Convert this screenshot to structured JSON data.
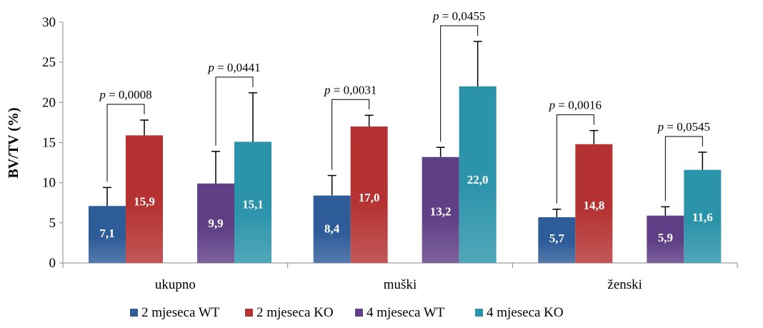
{
  "chart_data": {
    "type": "bar",
    "ylabel": "BV/TV (%)",
    "ylim": [
      0,
      30
    ],
    "yticks": [
      "0",
      "5",
      "10",
      "15",
      "20",
      "25",
      "30"
    ],
    "categories": [
      "ukupno",
      "muški",
      "ženski"
    ],
    "grid": false,
    "legend_position": "bottom",
    "series": [
      {
        "name": "2 mjeseca WT",
        "color": "#2E5C99",
        "values": [
          7.1,
          8.4,
          5.7
        ],
        "labels": [
          "7,1",
          "8,4",
          "5,7"
        ],
        "errors": [
          2.3,
          2.5,
          1.0
        ]
      },
      {
        "name": "2 mjeseca KO",
        "color": "#B53232",
        "values": [
          15.9,
          17.0,
          14.8
        ],
        "labels": [
          "15,9",
          "17,0",
          "14,8"
        ],
        "errors": [
          1.9,
          1.4,
          1.7
        ]
      },
      {
        "name": "4 mjeseca WT",
        "color": "#5F3F86",
        "values": [
          9.9,
          13.2,
          5.9
        ],
        "labels": [
          "9,9",
          "13,2",
          "5,9"
        ],
        "errors": [
          4.0,
          1.2,
          1.1
        ]
      },
      {
        "name": "4 mjeseca KO",
        "color": "#2B93AA",
        "values": [
          15.1,
          22.0,
          11.6
        ],
        "labels": [
          "15,1",
          "22,0",
          "11,6"
        ],
        "errors": [
          6.1,
          5.6,
          2.2
        ]
      }
    ],
    "annotations": [
      {
        "category": 0,
        "pair": [
          0,
          1
        ],
        "p_label": "p",
        "p_value": " = 0,0008"
      },
      {
        "category": 0,
        "pair": [
          2,
          3
        ],
        "p_label": "p",
        "p_value": " = 0,0441"
      },
      {
        "category": 1,
        "pair": [
          0,
          1
        ],
        "p_label": "p",
        "p_value": " = 0,0031"
      },
      {
        "category": 1,
        "pair": [
          2,
          3
        ],
        "p_label": "p",
        "p_value": " = 0,0455"
      },
      {
        "category": 2,
        "pair": [
          0,
          1
        ],
        "p_label": "p",
        "p_value": " = 0,0016"
      },
      {
        "category": 2,
        "pair": [
          2,
          3
        ],
        "p_label": "p",
        "p_value": " = 0,0545"
      }
    ]
  }
}
